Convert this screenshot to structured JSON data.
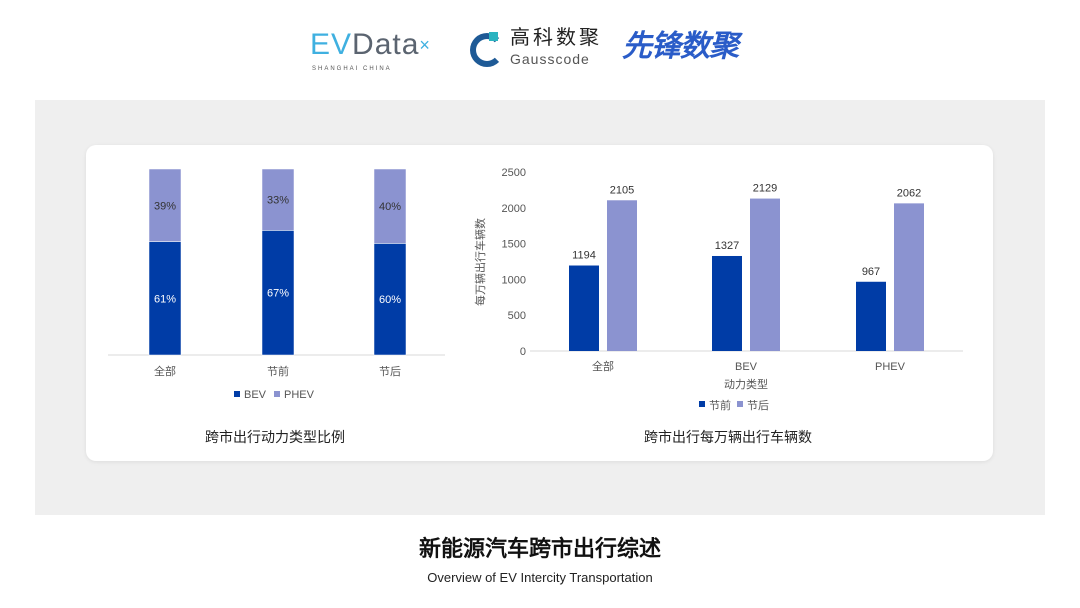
{
  "logos": {
    "evdata": {
      "text_ev": "EV",
      "text_data": "Data",
      "sub": "SHANGHAI CHINA"
    },
    "gausscode": {
      "cn": "高科数聚",
      "en": "Gausscode"
    },
    "xianfeng": {
      "cn": "先锋数聚"
    }
  },
  "page": {
    "title": "新能源汽车跨市出行综述",
    "subtitle": "Overview of EV Intercity Transportation"
  },
  "colors": {
    "dark_blue": "#003ca6",
    "light_purple": "#8b93d0",
    "panel": "#efefef"
  },
  "chart_data": [
    {
      "type": "bar",
      "stacked": true,
      "percent": true,
      "title": "跨市出行动力类型比例",
      "categories": [
        "全部",
        "节前",
        "节后"
      ],
      "series": [
        {
          "name": "BEV",
          "values": [
            61,
            67,
            60
          ],
          "labels": [
            "61%",
            "67%",
            "60%"
          ],
          "color": "#003ca6"
        },
        {
          "name": "PHEV",
          "values": [
            39,
            33,
            40
          ],
          "labels": [
            "39%",
            "33%",
            "40%"
          ],
          "color": "#8b93d0"
        }
      ],
      "legend": "bottom",
      "grid": false
    },
    {
      "type": "bar",
      "title": "跨市出行每万辆出行车辆数",
      "xlabel": "动力类型",
      "ylabel": "每万辆出行车辆数",
      "categories": [
        "全部",
        "BEV",
        "PHEV"
      ],
      "ylim": [
        0,
        2500
      ],
      "yticks": [
        0,
        500,
        1000,
        1500,
        2000,
        2500
      ],
      "series": [
        {
          "name": "节前",
          "values": [
            1194,
            1327,
            967
          ],
          "color": "#003ca6"
        },
        {
          "name": "节后",
          "values": [
            2105,
            2129,
            2062
          ],
          "color": "#8b93d0"
        }
      ],
      "legend": "bottom",
      "grid": false
    }
  ]
}
